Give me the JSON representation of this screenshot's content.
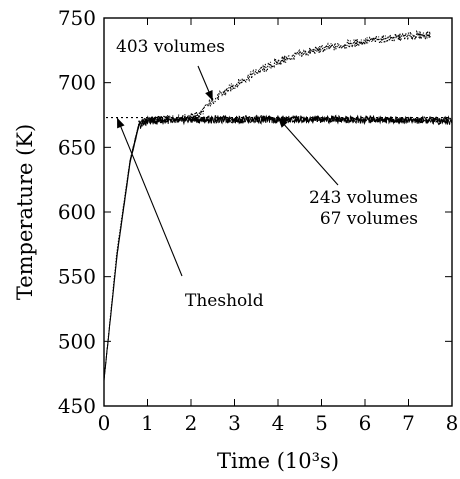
{
  "chart_data": {
    "type": "line",
    "xlabel": "Time (10³s)",
    "ylabel": "Temperature (K)",
    "xlim": [
      0,
      8
    ],
    "ylim": [
      450,
      750
    ],
    "x_ticks": [
      0,
      1,
      2,
      3,
      4,
      5,
      6,
      7,
      8
    ],
    "y_ticks": [
      450,
      500,
      550,
      600,
      650,
      700,
      750
    ],
    "grid": false,
    "threshold": {
      "y": 673,
      "x_range": [
        0,
        8
      ]
    },
    "series": [
      {
        "name": "403 volumes",
        "style": "dotted",
        "x": [
          0,
          0.3,
          0.6,
          0.8,
          1.0,
          1.5,
          2.0,
          2.2,
          2.5,
          3.0,
          3.5,
          4.0,
          4.5,
          5.0,
          5.5,
          6.0,
          6.5,
          7.0,
          7.5
        ],
        "y": [
          470,
          570,
          640,
          668,
          671,
          672,
          673,
          676,
          686,
          698,
          708,
          716,
          722,
          726,
          729,
          732,
          734,
          736,
          737
        ]
      },
      {
        "name": "243 volumes",
        "style": "solid",
        "x": [
          0,
          0.3,
          0.6,
          0.8,
          1.0,
          2.0,
          3.0,
          4.0,
          5.0,
          6.0,
          7.0,
          8.0
        ],
        "y": [
          470,
          568,
          640,
          668,
          671,
          672,
          672,
          672,
          672,
          672,
          671,
          671
        ]
      },
      {
        "name": "67 volumes",
        "style": "solid",
        "x": [
          0,
          0.3,
          0.6,
          0.8,
          1.0,
          2.0,
          3.0,
          4.0,
          5.0,
          6.0,
          7.0,
          8.0
        ],
        "y": [
          470,
          566,
          638,
          666,
          670,
          671,
          671,
          671,
          671,
          671,
          671,
          670
        ]
      }
    ],
    "annotations": [
      {
        "text": "403 volumes",
        "target": [
          2.5,
          686
        ]
      },
      {
        "text": "243 volumes",
        "target": [
          4.0,
          673
        ]
      },
      {
        "text": "67 volumes"
      },
      {
        "text": "Theshold",
        "target": [
          0.3,
          673
        ]
      }
    ]
  }
}
